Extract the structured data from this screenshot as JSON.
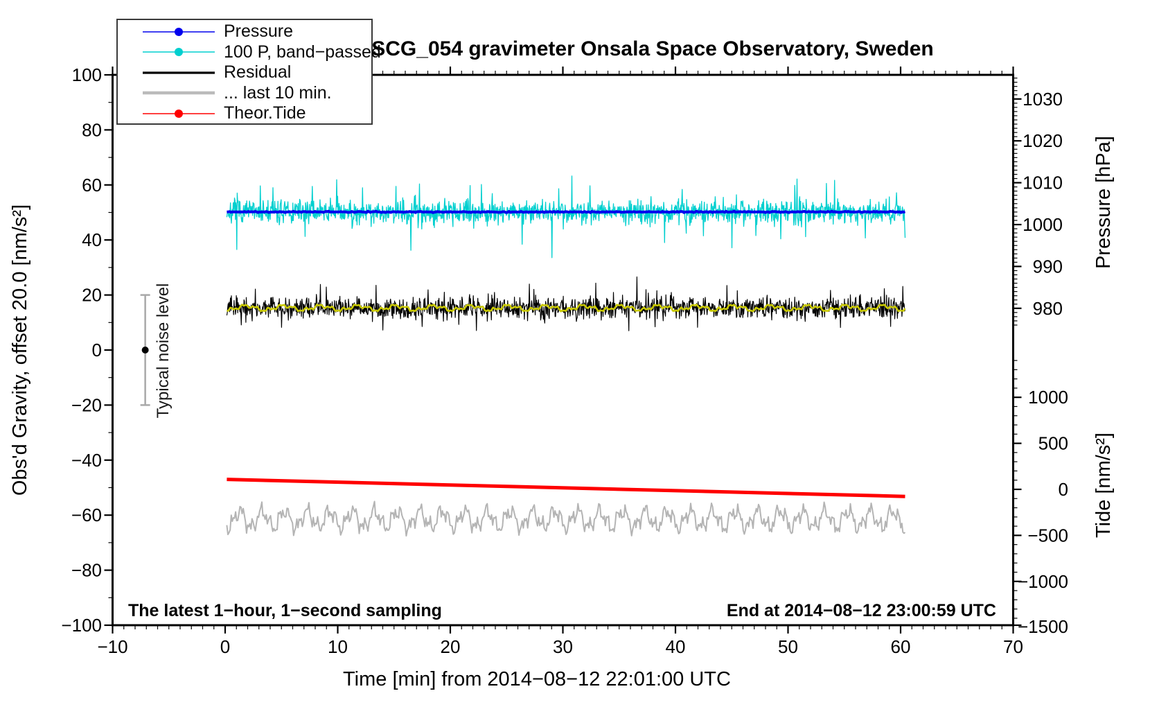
{
  "title": "SCG_054 gravimeter Onsala Space Observatory, Sweden",
  "annotations": {
    "sampling_note": "The latest 1−hour, 1−second sampling",
    "end_note": "End at 2014−08−12 23:00:59 UTC"
  },
  "legend": {
    "items": [
      {
        "label": "Pressure",
        "color": "#0000EE",
        "marker": true,
        "line_width": 1.6
      },
      {
        "label": "100 P, band−passed",
        "color": "#00CFCF",
        "marker": true,
        "line_width": 1.6
      },
      {
        "label": "Residual",
        "color": "#000000",
        "marker": false,
        "line_width": 3.2
      },
      {
        "label": "... last 10 min.",
        "color": "#BBBBBB",
        "marker": false,
        "line_width": 4.5
      },
      {
        "label": "Theor.Tide",
        "color": "#FF0000",
        "marker": true,
        "line_width": 1.6
      }
    ]
  },
  "chart_data": {
    "type": "line",
    "title": "SCG_054 gravimeter Onsala Space Observatory, Sweden",
    "grid": false,
    "x": {
      "label": "Time [min] from 2014−08−12 22:01:00 UTC",
      "min": -10,
      "max": 70,
      "minor_tick_step": 1,
      "ticks": [
        -10,
        0,
        10,
        20,
        30,
        40,
        50,
        60,
        70
      ],
      "tick_labels": [
        "−10",
        "0",
        "10",
        "20",
        "30",
        "40",
        "50",
        "60",
        "70"
      ]
    },
    "y_left": {
      "label": "Obs'd Gravity, offset 20.0 [nm/s²]",
      "min": -100,
      "max": 100,
      "minor_tick_step": 10,
      "ticks": [
        100,
        80,
        60,
        40,
        20,
        0,
        -20,
        -40,
        -60,
        -80,
        -100
      ],
      "tick_labels": [
        "100",
        "80",
        "60",
        "40",
        "20",
        "0",
        "−20",
        "−40",
        "−60",
        "−80",
        "−100"
      ]
    },
    "y_right_pressure": {
      "label": "Pressure [hPa]",
      "minor_tick_step": 1,
      "ticks": [
        1030,
        1020,
        1010,
        1000,
        990,
        980
      ],
      "tick_labels": [
        "1030",
        "1020",
        "1010",
        "1000",
        "990",
        "980"
      ]
    },
    "y_right_tide": {
      "label": "Tide [nm/s²]",
      "minor_tick_step": 100,
      "ticks": [
        1000,
        500,
        0,
        -500,
        -1000,
        -1500
      ],
      "tick_labels": [
        "1000",
        "500",
        "0",
        "−500",
        "−1000",
        "−1500"
      ]
    },
    "series": [
      {
        "name": "100 P, band−passed",
        "color": "#00CFCF",
        "axis": "gravity",
        "x_min": 0,
        "x_max": 60,
        "center": 50.2,
        "typical_range": [
          45,
          55
        ],
        "peak_range": [
          37,
          65
        ]
      },
      {
        "name": "Pressure",
        "color": "#0000EE",
        "axis": "pressure",
        "x_min": 0,
        "x_max": 60,
        "mean_pressure_hPa": 1002.5,
        "gravity_axis_position": 50.2,
        "appearance": "thick nearly flat line"
      },
      {
        "name": "Residual",
        "color": "#000000",
        "axis": "gravity",
        "x_min": 0,
        "x_max": 60,
        "center": 15.3,
        "typical_range": [
          11,
          20
        ],
        "peak_range": [
          6,
          25
        ]
      },
      {
        "name": "Residual smoothed",
        "color": "#C9C900",
        "axis": "gravity",
        "x_min": 0,
        "x_max": 60,
        "center": 15.3,
        "typical_range": [
          14.3,
          16.3
        ]
      },
      {
        "name": "... last 10 min.",
        "color": "#B4B4B4",
        "axis": "gravity",
        "x_min": 0,
        "x_max": 60,
        "center": -61.5,
        "typical_range": [
          -66,
          -57
        ]
      },
      {
        "name": "Theor.Tide",
        "color": "#FF0000",
        "axis": "tide",
        "x_min": 0,
        "x_max": 60,
        "start_tide": 105,
        "end_tide": -75,
        "gravity_axis_start": -47.0,
        "gravity_axis_end": -53.2
      }
    ],
    "noise_indicator": {
      "label": "Typical noise level",
      "x_time_min": -7.1,
      "center_gravity": 0,
      "half_range": 20,
      "bar_color": "#A8A8A8",
      "dot_color": "#000000"
    }
  }
}
